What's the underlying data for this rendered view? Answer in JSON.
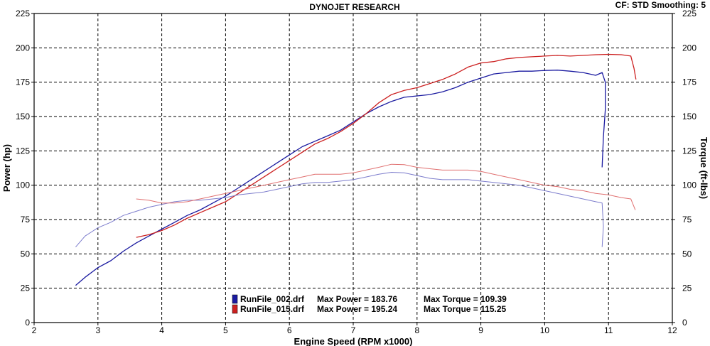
{
  "header": {
    "title": "DYNOJET RESEARCH",
    "correction": "CF: STD  Smoothing: 5"
  },
  "chart_data": {
    "type": "line",
    "xlabel": "Engine Speed (RPM x1000)",
    "ylabel": "Power (hp)",
    "y2label": "Torque (ft-lbs)",
    "xlim": [
      2,
      12
    ],
    "ylim": [
      0,
      225
    ],
    "y2lim": [
      0,
      225
    ],
    "x_ticks": [
      2,
      3,
      4,
      5,
      6,
      7,
      8,
      9,
      10,
      11,
      12
    ],
    "y_ticks": [
      0,
      25,
      50,
      75,
      100,
      125,
      150,
      175,
      200,
      225
    ],
    "grid": true,
    "legend": [
      {
        "file": "RunFile_002.drf",
        "max_power_label": "Max Power = 183.76",
        "max_torque_label": "Max Torque = 109.39",
        "color": "#1a1aa0"
      },
      {
        "file": "RunFile_015.drf",
        "max_power_label": "Max Power = 195.24",
        "max_torque_label": "Max Torque = 115.25",
        "color": "#cc2020"
      }
    ],
    "series": [
      {
        "name": "RunFile_002.drf",
        "quantity": "power",
        "color": "#1a1aa0",
        "points": [
          [
            2.65,
            27
          ],
          [
            2.8,
            33
          ],
          [
            3.0,
            40
          ],
          [
            3.2,
            45
          ],
          [
            3.4,
            52
          ],
          [
            3.6,
            58
          ],
          [
            3.8,
            63
          ],
          [
            4.0,
            68
          ],
          [
            4.2,
            73
          ],
          [
            4.4,
            78
          ],
          [
            4.6,
            82
          ],
          [
            4.8,
            87
          ],
          [
            5.0,
            92
          ],
          [
            5.2,
            98
          ],
          [
            5.4,
            104
          ],
          [
            5.6,
            110
          ],
          [
            5.8,
            116
          ],
          [
            6.0,
            122
          ],
          [
            6.2,
            128
          ],
          [
            6.4,
            132
          ],
          [
            6.6,
            136
          ],
          [
            6.8,
            140
          ],
          [
            7.0,
            146
          ],
          [
            7.2,
            152
          ],
          [
            7.4,
            157
          ],
          [
            7.6,
            161
          ],
          [
            7.8,
            164
          ],
          [
            8.0,
            165
          ],
          [
            8.2,
            166
          ],
          [
            8.4,
            168
          ],
          [
            8.6,
            171
          ],
          [
            8.8,
            175
          ],
          [
            9.0,
            178
          ],
          [
            9.2,
            181
          ],
          [
            9.4,
            182
          ],
          [
            9.6,
            183
          ],
          [
            9.8,
            183
          ],
          [
            10.0,
            183.5
          ],
          [
            10.2,
            183.76
          ],
          [
            10.4,
            183
          ],
          [
            10.6,
            182
          ],
          [
            10.8,
            180
          ],
          [
            10.9,
            182
          ],
          [
            10.95,
            175
          ],
          [
            10.95,
            155
          ],
          [
            10.92,
            135
          ],
          [
            10.9,
            113
          ]
        ]
      },
      {
        "name": "RunFile_015.drf",
        "quantity": "power",
        "color": "#cc2020",
        "points": [
          [
            3.6,
            62
          ],
          [
            3.8,
            64
          ],
          [
            4.0,
            67
          ],
          [
            4.2,
            71
          ],
          [
            4.4,
            76
          ],
          [
            4.6,
            80
          ],
          [
            4.8,
            84
          ],
          [
            5.0,
            88
          ],
          [
            5.2,
            94
          ],
          [
            5.4,
            100
          ],
          [
            5.6,
            106
          ],
          [
            5.8,
            112
          ],
          [
            6.0,
            118
          ],
          [
            6.2,
            124
          ],
          [
            6.4,
            130
          ],
          [
            6.6,
            134
          ],
          [
            6.8,
            139
          ],
          [
            7.0,
            145
          ],
          [
            7.2,
            152
          ],
          [
            7.4,
            160
          ],
          [
            7.6,
            166
          ],
          [
            7.8,
            169
          ],
          [
            8.0,
            171
          ],
          [
            8.2,
            174
          ],
          [
            8.4,
            177
          ],
          [
            8.6,
            181
          ],
          [
            8.8,
            186
          ],
          [
            9.0,
            189
          ],
          [
            9.2,
            190
          ],
          [
            9.4,
            192
          ],
          [
            9.6,
            193
          ],
          [
            9.8,
            193.5
          ],
          [
            10.0,
            194
          ],
          [
            10.2,
            194.5
          ],
          [
            10.4,
            194
          ],
          [
            10.6,
            194.5
          ],
          [
            10.8,
            195
          ],
          [
            11.0,
            195.24
          ],
          [
            11.2,
            195
          ],
          [
            11.35,
            194
          ],
          [
            11.4,
            185
          ],
          [
            11.43,
            177
          ]
        ]
      },
      {
        "name": "RunFile_002.drf",
        "quantity": "torque",
        "color": "#7c7ccc",
        "points": [
          [
            2.65,
            55
          ],
          [
            2.8,
            63
          ],
          [
            3.0,
            69
          ],
          [
            3.2,
            73
          ],
          [
            3.4,
            78
          ],
          [
            3.6,
            81
          ],
          [
            3.8,
            84
          ],
          [
            4.0,
            86
          ],
          [
            4.2,
            88
          ],
          [
            4.4,
            89
          ],
          [
            4.6,
            89
          ],
          [
            4.8,
            90
          ],
          [
            5.0,
            91
          ],
          [
            5.2,
            93
          ],
          [
            5.4,
            94
          ],
          [
            5.6,
            95
          ],
          [
            5.8,
            97
          ],
          [
            6.0,
            99
          ],
          [
            6.2,
            101
          ],
          [
            6.4,
            102
          ],
          [
            6.6,
            102
          ],
          [
            6.8,
            103
          ],
          [
            7.0,
            104
          ],
          [
            7.2,
            106
          ],
          [
            7.4,
            108
          ],
          [
            7.6,
            109.39
          ],
          [
            7.8,
            109
          ],
          [
            8.0,
            107
          ],
          [
            8.2,
            105
          ],
          [
            8.4,
            104
          ],
          [
            8.6,
            104
          ],
          [
            8.8,
            104
          ],
          [
            9.0,
            103
          ],
          [
            9.2,
            102
          ],
          [
            9.4,
            101
          ],
          [
            9.6,
            100
          ],
          [
            9.8,
            98
          ],
          [
            10.0,
            96
          ],
          [
            10.2,
            94
          ],
          [
            10.4,
            92
          ],
          [
            10.6,
            90
          ],
          [
            10.8,
            88
          ],
          [
            10.9,
            87
          ],
          [
            10.92,
            70
          ],
          [
            10.9,
            55
          ]
        ]
      },
      {
        "name": "RunFile_015.drf",
        "quantity": "torque",
        "color": "#e07070",
        "points": [
          [
            3.6,
            90
          ],
          [
            3.8,
            89
          ],
          [
            4.0,
            87
          ],
          [
            4.2,
            87
          ],
          [
            4.4,
            88
          ],
          [
            4.6,
            90
          ],
          [
            4.8,
            92
          ],
          [
            5.0,
            94
          ],
          [
            5.2,
            96
          ],
          [
            5.4,
            98
          ],
          [
            5.6,
            100
          ],
          [
            5.8,
            102
          ],
          [
            6.0,
            104
          ],
          [
            6.2,
            106
          ],
          [
            6.4,
            108
          ],
          [
            6.6,
            108
          ],
          [
            6.8,
            108
          ],
          [
            7.0,
            109
          ],
          [
            7.2,
            111
          ],
          [
            7.4,
            113
          ],
          [
            7.6,
            115.25
          ],
          [
            7.8,
            115
          ],
          [
            8.0,
            113
          ],
          [
            8.2,
            112
          ],
          [
            8.4,
            111
          ],
          [
            8.6,
            111
          ],
          [
            8.8,
            111
          ],
          [
            9.0,
            110
          ],
          [
            9.2,
            108
          ],
          [
            9.4,
            106
          ],
          [
            9.6,
            104
          ],
          [
            9.8,
            102
          ],
          [
            10.0,
            100
          ],
          [
            10.2,
            99
          ],
          [
            10.4,
            97
          ],
          [
            10.6,
            96
          ],
          [
            10.8,
            94
          ],
          [
            11.0,
            93
          ],
          [
            11.2,
            91
          ],
          [
            11.35,
            90
          ],
          [
            11.42,
            82
          ]
        ]
      }
    ]
  }
}
